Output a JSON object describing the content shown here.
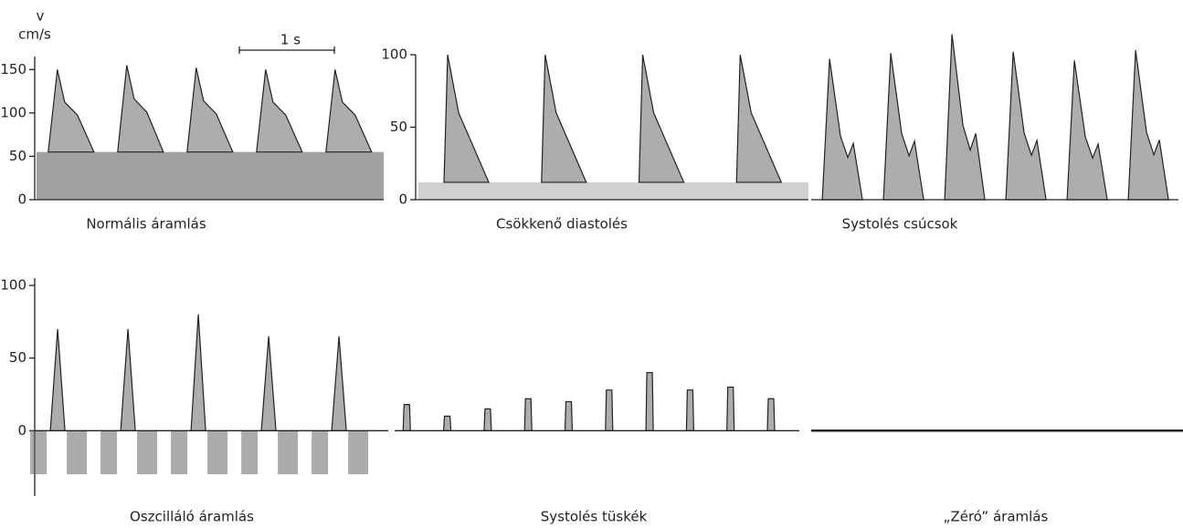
{
  "chart_data": [
    {
      "type": "doppler",
      "title": "Normális áramlás",
      "ylabel": "v",
      "yunit": "cm/s",
      "scale_bar": "1 s",
      "values": [
        150,
        155,
        152,
        150,
        150
      ],
      "diastolic": 55,
      "ylim": [
        0,
        165
      ],
      "yticks": [
        0,
        50,
        100,
        150
      ]
    },
    {
      "type": "doppler",
      "title": "Csökkenő diastolés",
      "values": [
        100,
        100,
        100,
        100
      ],
      "diastolic": 12,
      "ylim": [
        0,
        100
      ],
      "yticks": [
        0,
        50,
        100
      ]
    },
    {
      "type": "doppler",
      "title": "Systolés csúcsok",
      "values": [
        97,
        101,
        114,
        102,
        96,
        103
      ],
      "ylim": [
        0,
        115
      ]
    },
    {
      "type": "doppler",
      "title": "Oszcilláló áramlás",
      "values": [
        70,
        70,
        80,
        65,
        65
      ],
      "reverse": -30,
      "ylim": [
        -45,
        105
      ],
      "yticks": [
        0,
        50,
        100
      ]
    },
    {
      "type": "doppler",
      "title": "Systolés tüskék",
      "values": [
        18,
        10,
        15,
        22,
        20,
        28,
        40,
        28,
        30,
        22
      ],
      "ylim": [
        -45,
        105
      ]
    },
    {
      "type": "line",
      "title": "„Zéró” áramlás",
      "values": [
        0,
        0
      ],
      "ylim": [
        -45,
        105
      ]
    }
  ]
}
